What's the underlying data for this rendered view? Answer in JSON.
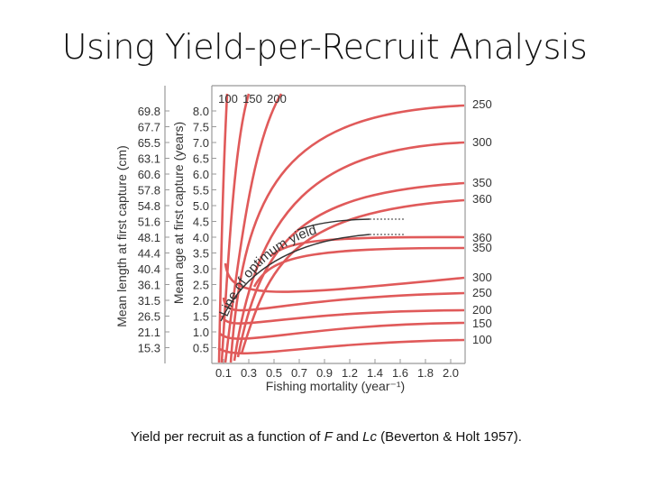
{
  "header": {
    "title": "Using Yield-per-Recruit Analysis"
  },
  "figure": {
    "length_axis_title": "Mean length at first capture (cm)",
    "age_axis_title": "Mean age at first capture (years)",
    "x_axis_title": "Fishing mortality (year⁻¹)",
    "length_labels": [
      "69.8",
      "67.7",
      "65.5",
      "63.1",
      "60.6",
      "57.8",
      "54.8",
      "51.6",
      "48.1",
      "44.4",
      "40.4",
      "36.1",
      "31.5",
      "26.5",
      "21.1",
      "15.3"
    ],
    "age_labels": [
      "8.0",
      "7.5",
      "7.0",
      "6.5",
      "6.0",
      "5.5",
      "5.0",
      "4.5",
      "4.0",
      "3.5",
      "3.0",
      "2.5",
      "2.0",
      "1.5",
      "1.0",
      "0.5"
    ],
    "x_labels": [
      "0.1",
      "0.3",
      "0.5",
      "0.7",
      "0.9",
      "1.2",
      "1.4",
      "1.6",
      "1.8",
      "2.0"
    ],
    "top_labels": [
      "100",
      "150",
      "200"
    ],
    "right_labels": [
      "250",
      "300",
      "350",
      "360",
      "360",
      "350",
      "300",
      "250",
      "200",
      "150",
      "100"
    ],
    "curve_label": "Line of optimum yield"
  },
  "caption": {
    "parts": [
      "Yield per recruit as a function of ",
      "F",
      " and ",
      "Lc",
      " (Beverton & Holt 1957)."
    ]
  }
}
